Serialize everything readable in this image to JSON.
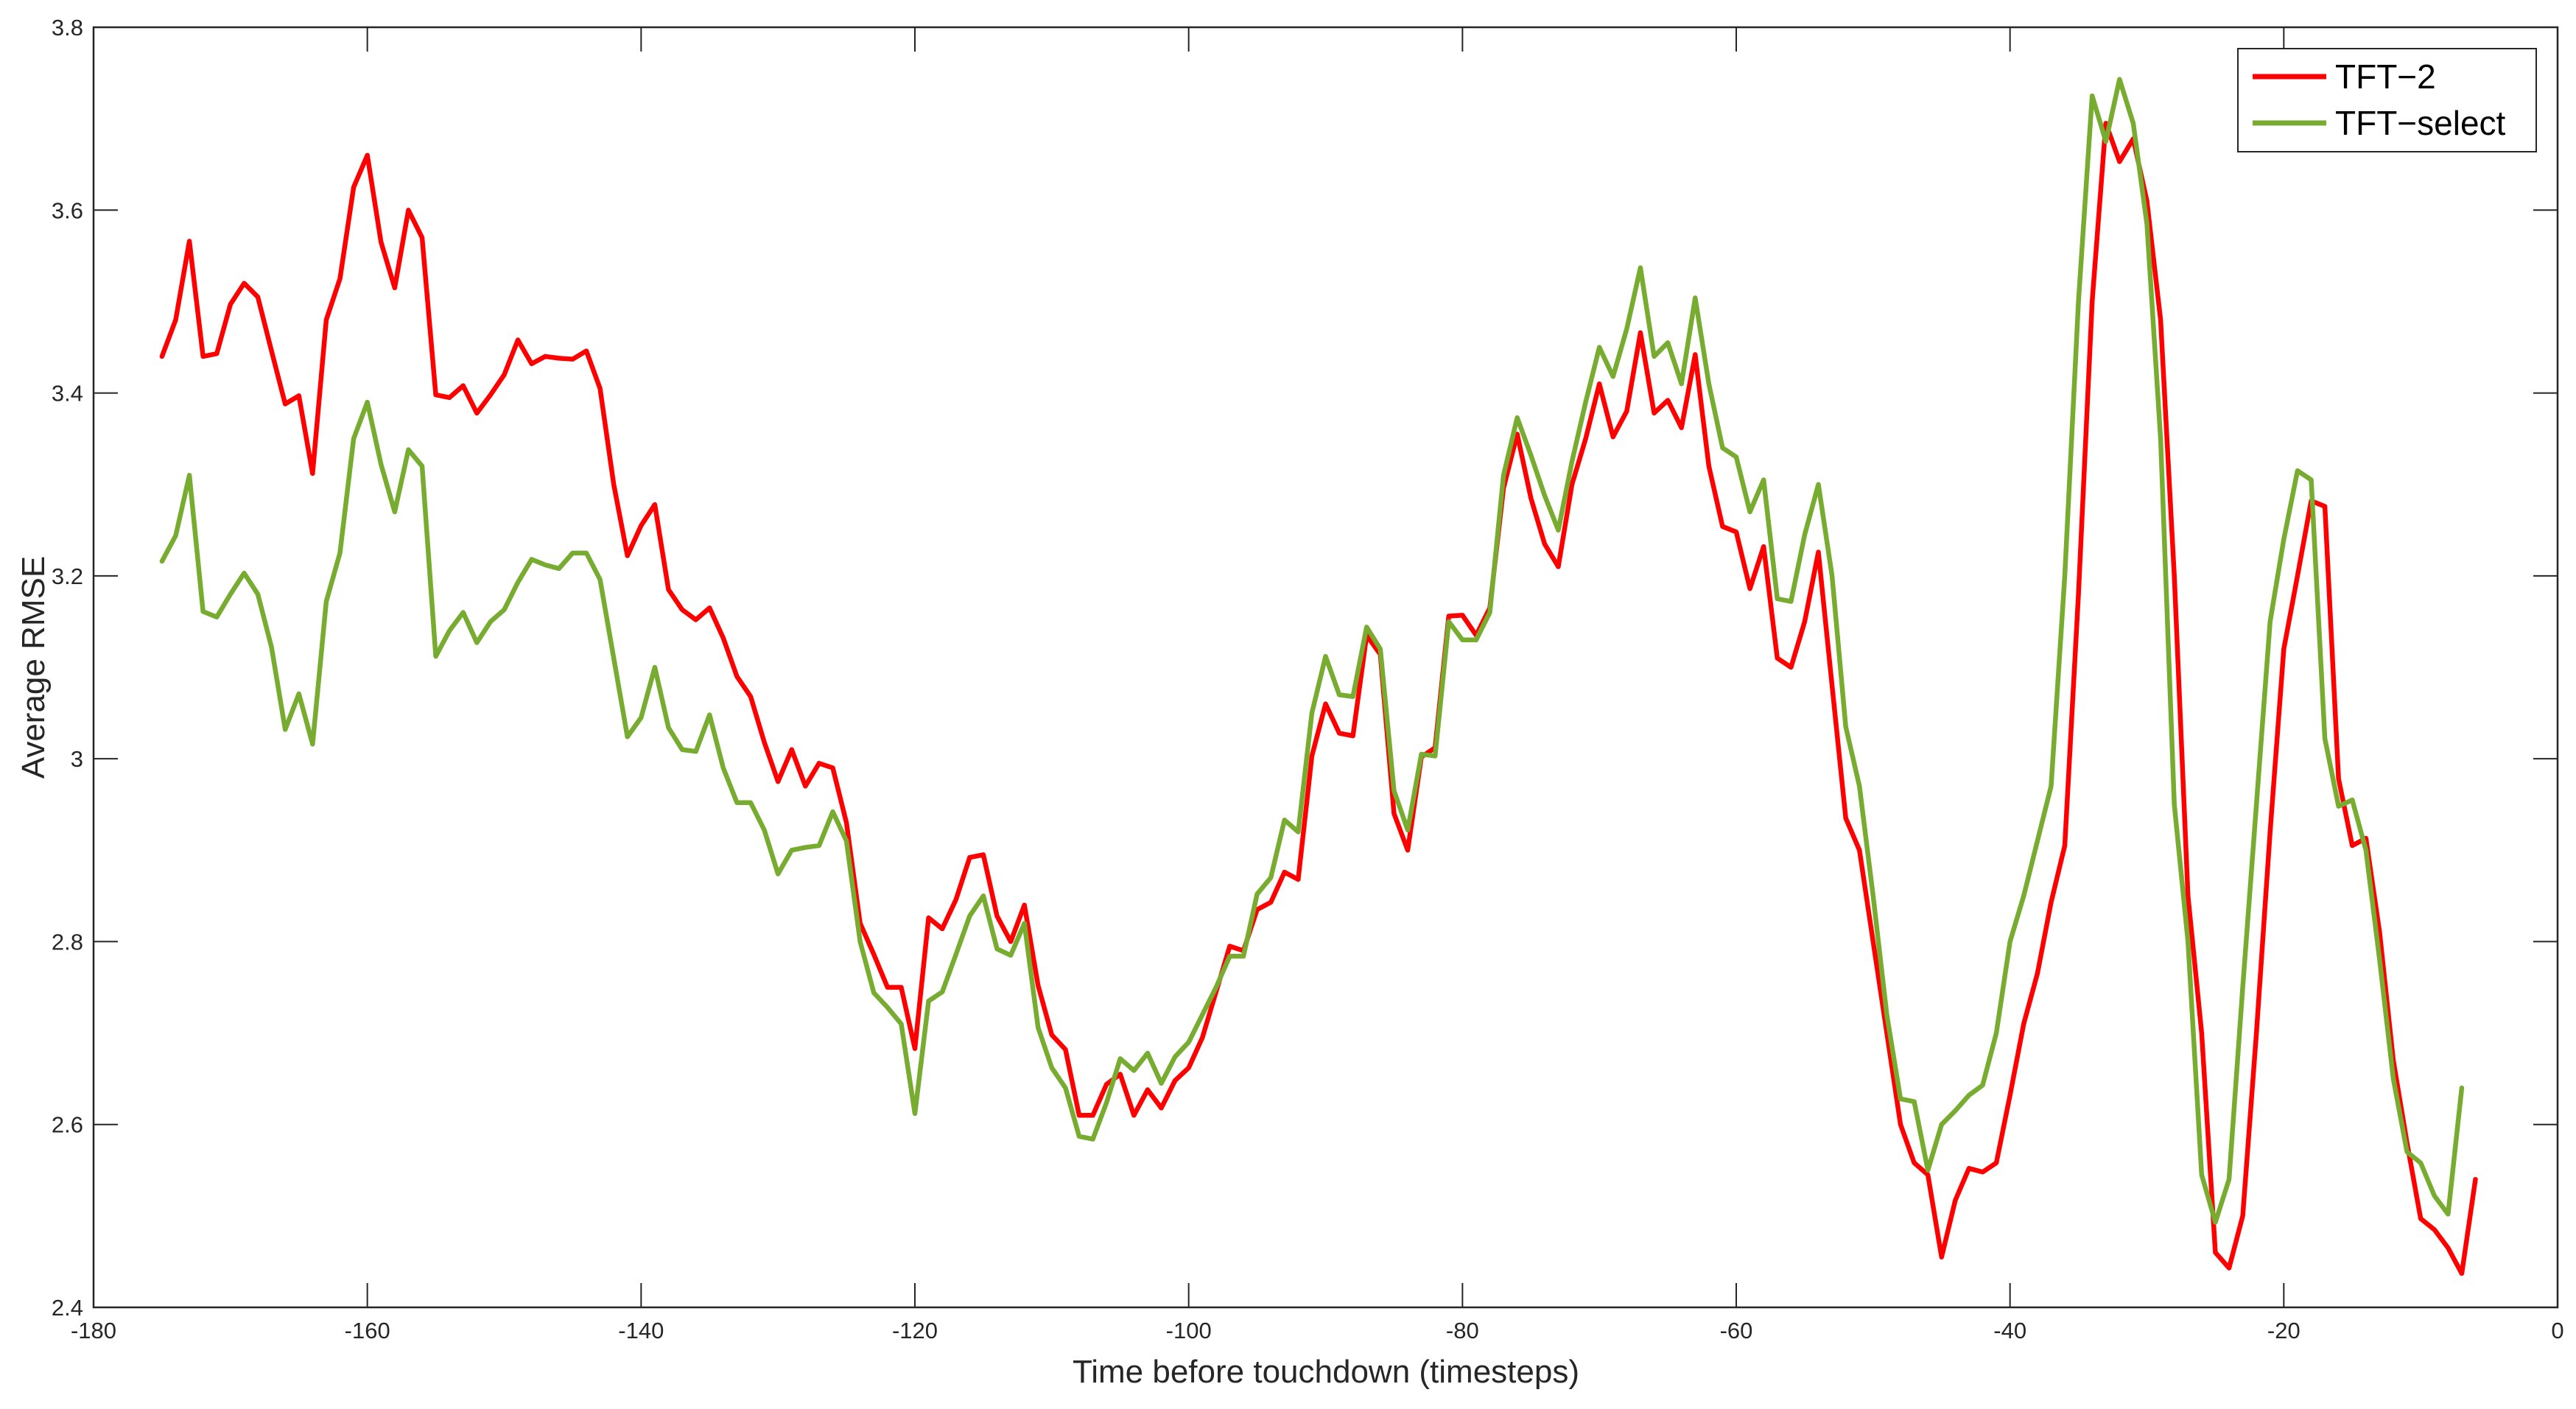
{
  "chart_data": {
    "type": "line",
    "title": "",
    "xlabel": "Time before touchdown (timesteps)",
    "ylabel": "Average RMSE",
    "xlim": [
      -180,
      0
    ],
    "ylim": [
      2.4,
      3.8
    ],
    "xticks": [
      -180,
      -160,
      -140,
      -120,
      -100,
      -80,
      -60,
      -40,
      -20,
      0
    ],
    "xtick_labels": [
      "-180",
      "-160",
      "-140",
      "-120",
      "-100",
      "-80",
      "-60",
      "-40",
      "-20",
      "0"
    ],
    "yticks": [
      2.4,
      2.6,
      2.8,
      3.0,
      3.2,
      3.4,
      3.6,
      3.8
    ],
    "ytick_labels": [
      "2.4",
      "2.6",
      "2.8",
      "3",
      "3.2",
      "3.4",
      "3.6",
      "3.8"
    ],
    "grid": false,
    "legend_position": "top-right",
    "x_start": -175,
    "x_step": 1,
    "series": [
      {
        "name": "TFT−2",
        "color": "#ff0000",
        "values": [
          3.44,
          3.48,
          3.566,
          3.44,
          3.443,
          3.497,
          3.52,
          3.505,
          3.446,
          3.388,
          3.397,
          3.312,
          3.48,
          3.525,
          3.625,
          3.66,
          3.565,
          3.515,
          3.6,
          3.57,
          3.398,
          3.395,
          3.408,
          3.378,
          3.398,
          3.42,
          3.458,
          3.432,
          3.44,
          3.438,
          3.437,
          3.446,
          3.405,
          3.3,
          3.222,
          3.255,
          3.278,
          3.185,
          3.163,
          3.152,
          3.165,
          3.132,
          3.09,
          3.068,
          3.018,
          2.975,
          3.01,
          2.97,
          2.995,
          2.99,
          2.93,
          2.82,
          2.786,
          2.75,
          2.75,
          2.683,
          2.826,
          2.814,
          2.846,
          2.892,
          2.895,
          2.828,
          2.8,
          2.84,
          2.752,
          2.698,
          2.682,
          2.61,
          2.61,
          2.644,
          2.655,
          2.61,
          2.638,
          2.618,
          2.648,
          2.662,
          2.695,
          2.745,
          2.795,
          2.79,
          2.835,
          2.843,
          2.876,
          2.868,
          3.003,
          3.06,
          3.028,
          3.025,
          3.135,
          3.114,
          2.94,
          2.9,
          3.002,
          3.012,
          3.156,
          3.157,
          3.135,
          3.165,
          3.296,
          3.355,
          3.285,
          3.235,
          3.21,
          3.3,
          3.35,
          3.41,
          3.352,
          3.38,
          3.466,
          3.378,
          3.392,
          3.362,
          3.442,
          3.32,
          3.254,
          3.248,
          3.186,
          3.232,
          3.11,
          3.1,
          3.15,
          3.226,
          3.08,
          2.935,
          2.9,
          2.8,
          2.7,
          2.6,
          2.558,
          2.545,
          2.455,
          2.517,
          2.552,
          2.548,
          2.558,
          2.632,
          2.71,
          2.765,
          2.843,
          2.905,
          3.18,
          3.5,
          3.695,
          3.653,
          3.678,
          3.61,
          3.48,
          3.2,
          2.85,
          2.7,
          2.46,
          2.443,
          2.5,
          2.7,
          2.92,
          3.12,
          3.2,
          3.282,
          3.276,
          2.978,
          2.905,
          2.913,
          2.81,
          2.67,
          2.58,
          2.497,
          2.485,
          2.465,
          2.437,
          2.54
        ]
      },
      {
        "name": "TFT−select",
        "color": "#77ac30",
        "values": [
          3.216,
          3.244,
          3.31,
          3.161,
          3.155,
          3.18,
          3.203,
          3.18,
          3.122,
          3.032,
          3.071,
          3.016,
          3.172,
          3.225,
          3.35,
          3.39,
          3.322,
          3.27,
          3.338,
          3.32,
          3.112,
          3.14,
          3.16,
          3.127,
          3.15,
          3.163,
          3.193,
          3.218,
          3.212,
          3.208,
          3.225,
          3.225,
          3.196,
          3.11,
          3.024,
          3.045,
          3.1,
          3.034,
          3.01,
          3.008,
          3.048,
          2.99,
          2.952,
          2.952,
          2.922,
          2.874,
          2.9,
          2.903,
          2.905,
          2.942,
          2.91,
          2.8,
          2.744,
          2.728,
          2.71,
          2.612,
          2.735,
          2.745,
          2.786,
          2.828,
          2.85,
          2.792,
          2.785,
          2.82,
          2.706,
          2.662,
          2.64,
          2.587,
          2.584,
          2.624,
          2.672,
          2.659,
          2.678,
          2.645,
          2.674,
          2.69,
          2.72,
          2.75,
          2.784,
          2.784,
          2.852,
          2.87,
          2.933,
          2.92,
          3.05,
          3.112,
          3.07,
          3.068,
          3.144,
          3.12,
          2.965,
          2.922,
          3.005,
          3.003,
          3.15,
          3.13,
          3.13,
          3.16,
          3.31,
          3.373,
          3.332,
          3.288,
          3.25,
          3.325,
          3.39,
          3.45,
          3.418,
          3.47,
          3.537,
          3.44,
          3.455,
          3.41,
          3.504,
          3.41,
          3.34,
          3.33,
          3.27,
          3.305,
          3.175,
          3.172,
          3.245,
          3.3,
          3.2,
          3.035,
          2.97,
          2.85,
          2.72,
          2.628,
          2.625,
          2.55,
          2.6,
          2.615,
          2.632,
          2.643,
          2.7,
          2.8,
          2.85,
          2.91,
          2.97,
          3.2,
          3.5,
          3.725,
          3.675,
          3.743,
          3.695,
          3.585,
          3.35,
          2.95,
          2.8,
          2.545,
          2.493,
          2.54,
          2.75,
          2.95,
          3.15,
          3.24,
          3.315,
          3.305,
          3.022,
          2.948,
          2.955,
          2.9,
          2.78,
          2.65,
          2.57,
          2.558,
          2.522,
          2.502,
          2.64
        ]
      }
    ]
  }
}
